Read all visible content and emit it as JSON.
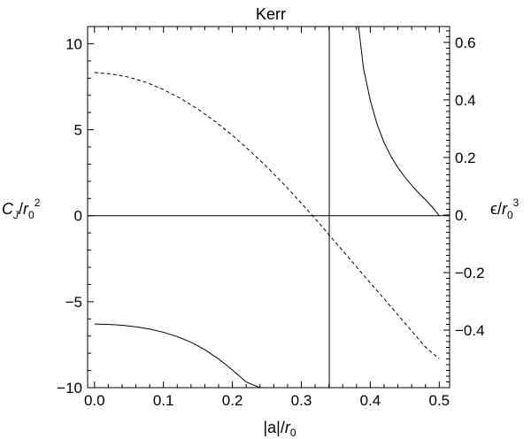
{
  "chart_data": {
    "type": "line",
    "title": "Kerr",
    "xlabel": {
      "base": "|a|/",
      "var": "r",
      "sub": "0"
    },
    "ylabel_left": {
      "base": "C",
      "sub": "J",
      "slash": "/",
      "var": "r",
      "sub2": "0",
      "sup": "2"
    },
    "ylabel_right": {
      "base": "ϵ/",
      "var": "r",
      "sub": "0",
      "sup": "3"
    },
    "xlim": [
      -0.01,
      0.515
    ],
    "ylim_left": [
      -10,
      11
    ],
    "ylim_right": [
      -0.6,
      0.655
    ],
    "x_ticks": [
      0.0,
      0.1,
      0.2,
      0.3,
      0.4,
      0.5
    ],
    "x_tick_labels": [
      "0.0",
      "0.1",
      "0.2",
      "0.3",
      "0.4",
      "0.5"
    ],
    "y_left_ticks": [
      -10,
      -5,
      0,
      5,
      10
    ],
    "y_left_tick_labels": [
      "−10",
      "−5",
      "0",
      "5",
      "10"
    ],
    "y_right_ticks": [
      -0.4,
      -0.2,
      0.0,
      0.2,
      0.4,
      0.6
    ],
    "y_right_tick_labels": [
      "−0.4",
      "−0.2",
      "0.",
      "0.2",
      "0.4",
      "0.6"
    ],
    "vertical_line_x": 0.3405,
    "horizontal_line_y": 0,
    "grid": false,
    "series": [
      {
        "axis": "left",
        "style": "solid",
        "x": [
          0.0,
          0.02,
          0.04,
          0.06,
          0.08,
          0.1,
          0.12,
          0.14,
          0.16,
          0.18,
          0.2,
          0.22,
          0.24
        ],
        "y": [
          -6.3,
          -6.32,
          -6.37,
          -6.46,
          -6.59,
          -6.78,
          -7.03,
          -7.36,
          -7.79,
          -8.33,
          -8.97,
          -9.67,
          -10.0
        ]
      },
      {
        "axis": "left",
        "style": "solid",
        "x": [
          0.383,
          0.39,
          0.4,
          0.41,
          0.42,
          0.43,
          0.44,
          0.45,
          0.46,
          0.47,
          0.48,
          0.49,
          0.5
        ],
        "y": [
          11.0,
          8.6,
          6.7,
          5.3,
          4.25,
          3.45,
          2.8,
          2.25,
          1.77,
          1.33,
          0.93,
          0.5,
          0.0
        ]
      },
      {
        "axis": "right",
        "style": "dashed",
        "x": [
          0.0,
          0.025,
          0.05,
          0.075,
          0.1,
          0.125,
          0.15,
          0.175,
          0.2,
          0.225,
          0.25,
          0.275,
          0.3,
          0.325,
          0.3405,
          0.36,
          0.38,
          0.4,
          0.42,
          0.44,
          0.46,
          0.48,
          0.5
        ],
        "y": [
          0.495,
          0.49,
          0.479,
          0.461,
          0.436,
          0.405,
          0.368,
          0.325,
          0.277,
          0.224,
          0.167,
          0.106,
          0.041,
          -0.026,
          -0.07,
          -0.124,
          -0.18,
          -0.236,
          -0.291,
          -0.347,
          -0.403,
          -0.459,
          -0.5
        ]
      }
    ]
  }
}
